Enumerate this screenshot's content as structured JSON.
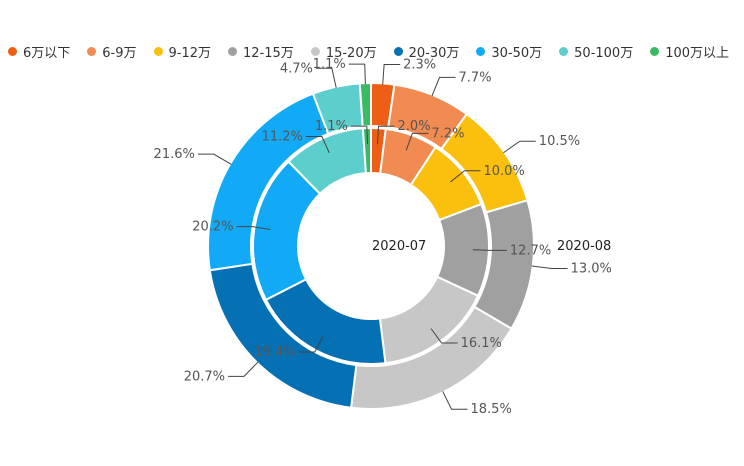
{
  "chart_data": {
    "type": "pie",
    "variant": "nested-donut",
    "categories": [
      "6万以下",
      "6-9万",
      "9-12万",
      "12-15万",
      "15-20万",
      "20-30万",
      "30-50万",
      "50-100万",
      "100万以上"
    ],
    "colors": [
      "#ed5f14",
      "#f28b52",
      "#fbbf0e",
      "#a0a0a0",
      "#c7c7c7",
      "#0670b5",
      "#12aaf6",
      "#5ccfcd",
      "#3bba64"
    ],
    "series": [
      {
        "name": "2020-07",
        "ring": "inner",
        "values": [
          2.0,
          7.2,
          10.0,
          12.7,
          16.1,
          19.4,
          20.2,
          11.2,
          1.1
        ],
        "labels": [
          "2.0%",
          "7.2%",
          "10.0%",
          "12.7%",
          "16.1%",
          "19.4%",
          "20.2%",
          "11.2%",
          "1.1%"
        ]
      },
      {
        "name": "2020-08",
        "ring": "outer",
        "values": [
          2.3,
          7.7,
          10.5,
          13.0,
          18.5,
          20.7,
          21.6,
          4.7,
          1.1
        ],
        "labels": [
          "2.3%",
          "7.7%",
          "10.5%",
          "13.0%",
          "18.5%",
          "20.7%",
          "21.6%",
          "4.7%",
          "1.1%"
        ]
      }
    ],
    "legend": "top-left"
  }
}
